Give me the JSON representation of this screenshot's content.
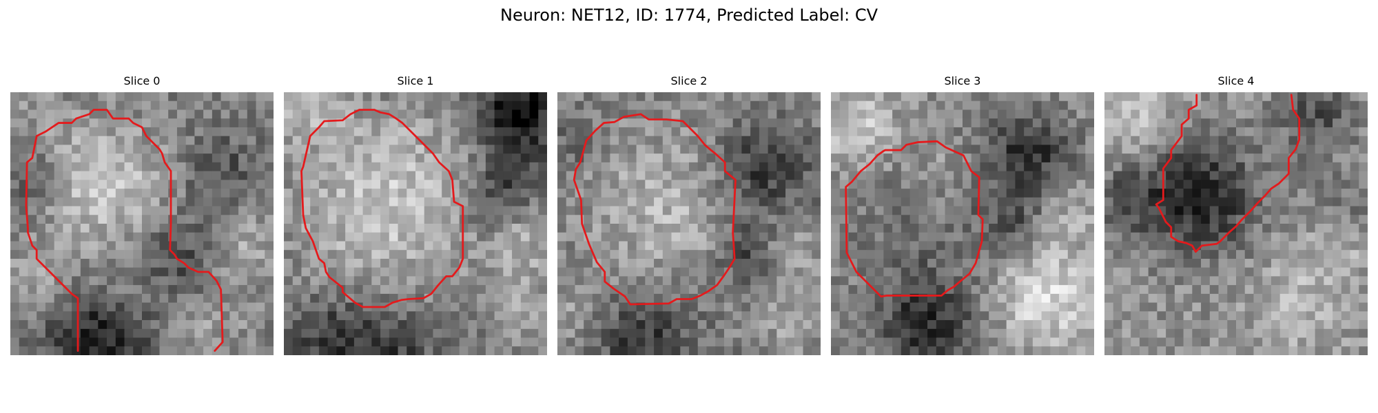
{
  "figure": {
    "title": "Neuron: NET12, ID: 1774, Predicted Label: CV"
  },
  "panels": [
    {
      "title": "Slice 0"
    },
    {
      "title": "Slice 1"
    },
    {
      "title": "Slice 2"
    },
    {
      "title": "Slice 3"
    },
    {
      "title": "Slice 4"
    }
  ],
  "colors": {
    "outline": "#e41a1c"
  }
}
